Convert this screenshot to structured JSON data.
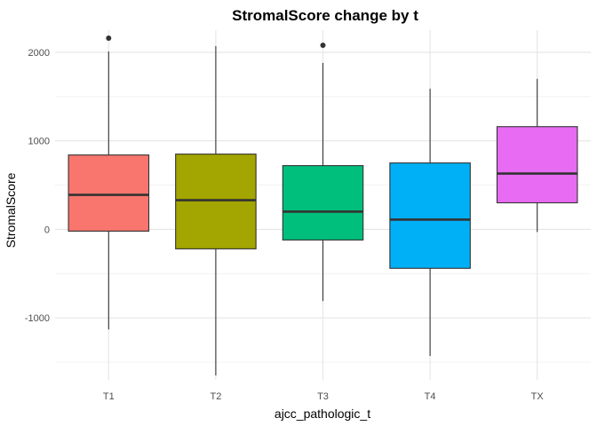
{
  "chart_data": {
    "type": "boxplot",
    "title": "StromalScore change by t",
    "xlabel": "ajcc_pathologic_t",
    "ylabel": "StromalScore",
    "categories": [
      "T1",
      "T2",
      "T3",
      "T4",
      "TX"
    ],
    "ylim": [
      -1700,
      2250
    ],
    "y_ticks": [
      -1000,
      0,
      1000,
      2000
    ],
    "y_tick_labels": [
      "-1000",
      "0",
      "1000",
      "2000"
    ],
    "grid": true,
    "legend": "none",
    "boxes": [
      {
        "category": "T1",
        "color": "#F8766D",
        "whisker_low": -1130,
        "q1": -20,
        "median": 390,
        "q3": 840,
        "whisker_high": 2010,
        "outliers": [
          2160
        ]
      },
      {
        "category": "T2",
        "color": "#A3A500",
        "whisker_low": -1650,
        "q1": -220,
        "median": 330,
        "q3": 850,
        "whisker_high": 2070,
        "outliers": []
      },
      {
        "category": "T3",
        "color": "#00BF7D",
        "whisker_low": -810,
        "q1": -120,
        "median": 200,
        "q3": 720,
        "whisker_high": 1880,
        "outliers": [
          2080
        ]
      },
      {
        "category": "T4",
        "color": "#00B0F6",
        "whisker_low": -1430,
        "q1": -440,
        "median": 110,
        "q3": 750,
        "whisker_high": 1590,
        "outliers": []
      },
      {
        "category": "TX",
        "color": "#E76BF3",
        "whisker_low": -30,
        "q1": 300,
        "median": 630,
        "q3": 1160,
        "whisker_high": 1700,
        "outliers": []
      }
    ]
  }
}
